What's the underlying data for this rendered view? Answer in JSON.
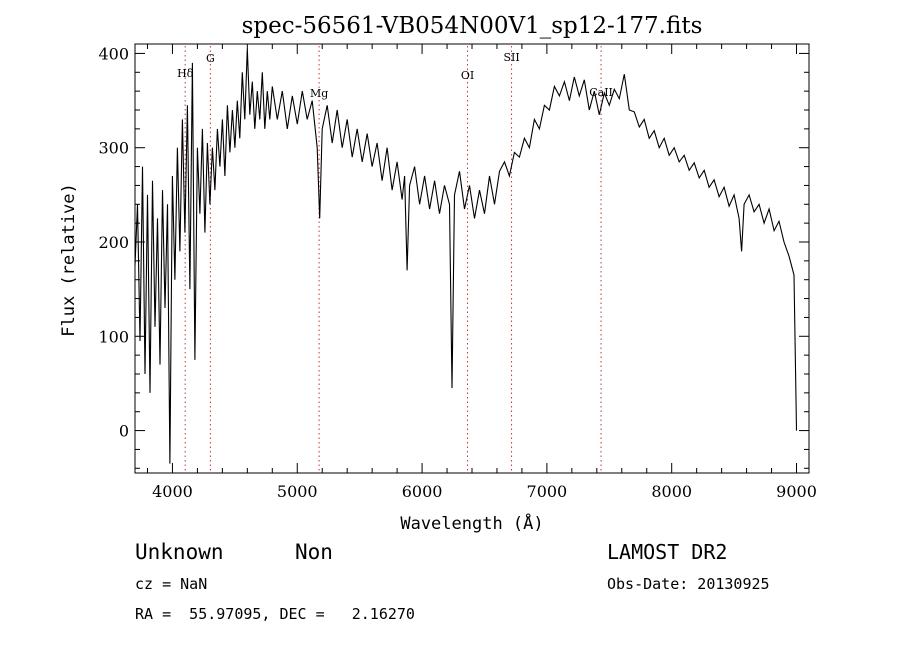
{
  "chart_data": {
    "type": "line",
    "title": "spec-56561-VB054N00V1_sp12-177.fits",
    "xlabel": "Wavelength (Å)",
    "ylabel": "Flux (relative)",
    "xlim": [
      3700,
      9100
    ],
    "ylim": [
      -45,
      410
    ],
    "xticks": [
      4000,
      5000,
      6000,
      7000,
      8000,
      9000
    ],
    "yticks": [
      0,
      100,
      200,
      300,
      400
    ],
    "grid": false,
    "line_color": "#000000",
    "marker_color": "#cc3333",
    "lines": [
      {
        "label": "Hδ",
        "x": 4102
      },
      {
        "label": "G",
        "x": 4304
      },
      {
        "label": "Mg",
        "x": 5175
      },
      {
        "label": "OI",
        "x": 6364
      },
      {
        "label": "SII",
        "x": 6717
      },
      {
        "label": "CaII",
        "x": 7434
      }
    ],
    "spectrum": [
      [
        3700,
        175
      ],
      [
        3720,
        240
      ],
      [
        3740,
        95
      ],
      [
        3760,
        280
      ],
      [
        3780,
        60
      ],
      [
        3800,
        250
      ],
      [
        3820,
        40
      ],
      [
        3840,
        265
      ],
      [
        3860,
        110
      ],
      [
        3880,
        225
      ],
      [
        3900,
        70
      ],
      [
        3920,
        255
      ],
      [
        3940,
        130
      ],
      [
        3960,
        240
      ],
      [
        3980,
        -35
      ],
      [
        4000,
        270
      ],
      [
        4020,
        160
      ],
      [
        4040,
        300
      ],
      [
        4060,
        190
      ],
      [
        4080,
        330
      ],
      [
        4100,
        210
      ],
      [
        4120,
        345
      ],
      [
        4140,
        150
      ],
      [
        4160,
        390
      ],
      [
        4180,
        75
      ],
      [
        4200,
        300
      ],
      [
        4220,
        230
      ],
      [
        4240,
        320
      ],
      [
        4260,
        210
      ],
      [
        4280,
        305
      ],
      [
        4300,
        240
      ],
      [
        4320,
        300
      ],
      [
        4340,
        255
      ],
      [
        4360,
        320
      ],
      [
        4380,
        280
      ],
      [
        4400,
        330
      ],
      [
        4420,
        270
      ],
      [
        4440,
        345
      ],
      [
        4460,
        295
      ],
      [
        4480,
        340
      ],
      [
        4500,
        300
      ],
      [
        4520,
        350
      ],
      [
        4540,
        310
      ],
      [
        4560,
        380
      ],
      [
        4580,
        330
      ],
      [
        4600,
        405
      ],
      [
        4620,
        335
      ],
      [
        4640,
        370
      ],
      [
        4660,
        320
      ],
      [
        4680,
        360
      ],
      [
        4700,
        330
      ],
      [
        4720,
        380
      ],
      [
        4740,
        320
      ],
      [
        4760,
        360
      ],
      [
        4780,
        330
      ],
      [
        4800,
        365
      ],
      [
        4840,
        330
      ],
      [
        4880,
        360
      ],
      [
        4920,
        320
      ],
      [
        4960,
        355
      ],
      [
        5000,
        325
      ],
      [
        5040,
        360
      ],
      [
        5080,
        330
      ],
      [
        5120,
        350
      ],
      [
        5160,
        300
      ],
      [
        5180,
        225
      ],
      [
        5200,
        320
      ],
      [
        5240,
        345
      ],
      [
        5280,
        305
      ],
      [
        5320,
        340
      ],
      [
        5360,
        300
      ],
      [
        5400,
        330
      ],
      [
        5440,
        290
      ],
      [
        5480,
        320
      ],
      [
        5520,
        285
      ],
      [
        5560,
        315
      ],
      [
        5600,
        280
      ],
      [
        5640,
        305
      ],
      [
        5680,
        265
      ],
      [
        5720,
        300
      ],
      [
        5760,
        255
      ],
      [
        5800,
        285
      ],
      [
        5840,
        245
      ],
      [
        5860,
        270
      ],
      [
        5880,
        170
      ],
      [
        5900,
        260
      ],
      [
        5940,
        280
      ],
      [
        5980,
        240
      ],
      [
        6020,
        270
      ],
      [
        6060,
        235
      ],
      [
        6100,
        265
      ],
      [
        6140,
        230
      ],
      [
        6180,
        260
      ],
      [
        6220,
        240
      ],
      [
        6240,
        45
      ],
      [
        6260,
        250
      ],
      [
        6300,
        275
      ],
      [
        6340,
        235
      ],
      [
        6380,
        260
      ],
      [
        6420,
        225
      ],
      [
        6460,
        255
      ],
      [
        6500,
        230
      ],
      [
        6540,
        270
      ],
      [
        6580,
        240
      ],
      [
        6620,
        275
      ],
      [
        6660,
        285
      ],
      [
        6700,
        270
      ],
      [
        6740,
        295
      ],
      [
        6780,
        290
      ],
      [
        6820,
        310
      ],
      [
        6860,
        300
      ],
      [
        6900,
        330
      ],
      [
        6940,
        320
      ],
      [
        6980,
        345
      ],
      [
        7020,
        340
      ],
      [
        7060,
        365
      ],
      [
        7100,
        355
      ],
      [
        7140,
        370
      ],
      [
        7180,
        350
      ],
      [
        7220,
        375
      ],
      [
        7260,
        355
      ],
      [
        7300,
        372
      ],
      [
        7340,
        340
      ],
      [
        7380,
        360
      ],
      [
        7420,
        335
      ],
      [
        7460,
        358
      ],
      [
        7500,
        345
      ],
      [
        7540,
        362
      ],
      [
        7580,
        352
      ],
      [
        7620,
        378
      ],
      [
        7660,
        340
      ],
      [
        7700,
        338
      ],
      [
        7740,
        322
      ],
      [
        7780,
        330
      ],
      [
        7820,
        310
      ],
      [
        7860,
        318
      ],
      [
        7900,
        300
      ],
      [
        7940,
        310
      ],
      [
        7980,
        292
      ],
      [
        8020,
        300
      ],
      [
        8060,
        285
      ],
      [
        8100,
        292
      ],
      [
        8140,
        276
      ],
      [
        8180,
        284
      ],
      [
        8220,
        268
      ],
      [
        8260,
        276
      ],
      [
        8300,
        258
      ],
      [
        8340,
        266
      ],
      [
        8380,
        248
      ],
      [
        8420,
        258
      ],
      [
        8460,
        238
      ],
      [
        8500,
        250
      ],
      [
        8540,
        225
      ],
      [
        8560,
        190
      ],
      [
        8580,
        240
      ],
      [
        8620,
        250
      ],
      [
        8660,
        232
      ],
      [
        8700,
        240
      ],
      [
        8740,
        220
      ],
      [
        8780,
        235
      ],
      [
        8820,
        212
      ],
      [
        8860,
        222
      ],
      [
        8900,
        200
      ],
      [
        8940,
        185
      ],
      [
        8980,
        165
      ],
      [
        9000,
        0
      ]
    ]
  },
  "footer": {
    "object_class": "Unknown",
    "subclass": "Non",
    "redshift": "cz = NaN",
    "coords": "RA =  55.97095, DEC =   2.16270",
    "survey": "LAMOST DR2",
    "obs_date": "Obs-Date: 20130925"
  }
}
